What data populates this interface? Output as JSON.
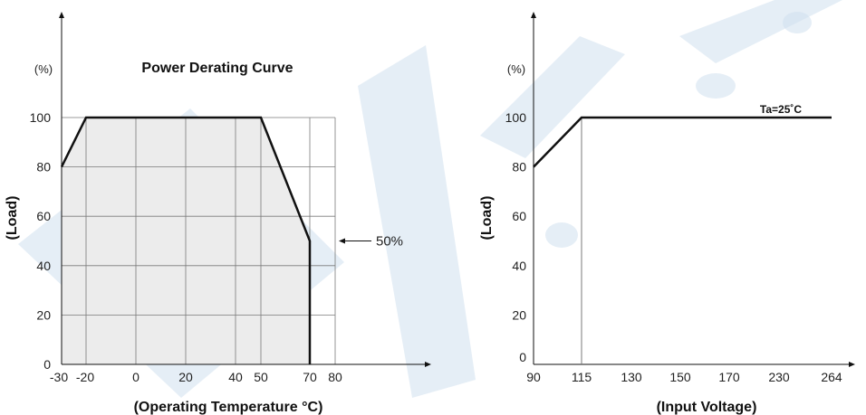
{
  "colors": {
    "watermark": "#cfe0ef",
    "fill": "#ececec",
    "grid": "#7a7a7a",
    "line": "#111111"
  },
  "chart_data": [
    {
      "type": "line",
      "title": "Power Derating Curve",
      "unit_label": "(%)",
      "xlabel": "(Operating Temperature °C)",
      "ylabel": "(Load)",
      "x_ticks": [
        -30,
        -20,
        0,
        20,
        40,
        50,
        70,
        80
      ],
      "x_tick_labels": [
        "-30",
        "-20",
        "0",
        "20",
        "40",
        "50",
        "70",
        "80"
      ],
      "y_ticks": [
        0,
        20,
        40,
        60,
        80,
        100
      ],
      "y_tick_labels": [
        "0",
        "20",
        "40",
        "60",
        "80",
        "100"
      ],
      "xlim": [
        -30,
        80
      ],
      "ylim": [
        0,
        100
      ],
      "grid": true,
      "series": [
        {
          "x": [
            -30,
            -20,
            20,
            50,
            70,
            70
          ],
          "y": [
            80,
            100,
            100,
            100,
            50,
            0
          ]
        }
      ],
      "annotation": {
        "text": "50%",
        "x": 70,
        "y": 50
      }
    },
    {
      "type": "line",
      "unit_label": "(%)",
      "xlabel": "(Input Voltage)",
      "ylabel": "(Load)",
      "x_ticks": [
        90,
        115,
        130,
        150,
        170,
        230,
        264
      ],
      "x_tick_labels": [
        "90",
        "115",
        "130",
        "150",
        "170",
        "230",
        "264"
      ],
      "y_ticks": [
        0,
        20,
        40,
        60,
        80,
        100
      ],
      "y_tick_labels": [
        "0",
        "20",
        "40",
        "60",
        "80",
        "100"
      ],
      "ylim": [
        0,
        100
      ],
      "grid": false,
      "series": [
        {
          "x": [
            90,
            115,
            264
          ],
          "y": [
            80,
            100,
            100
          ]
        }
      ],
      "annotation": {
        "text": "Ta=25˚C"
      }
    }
  ]
}
